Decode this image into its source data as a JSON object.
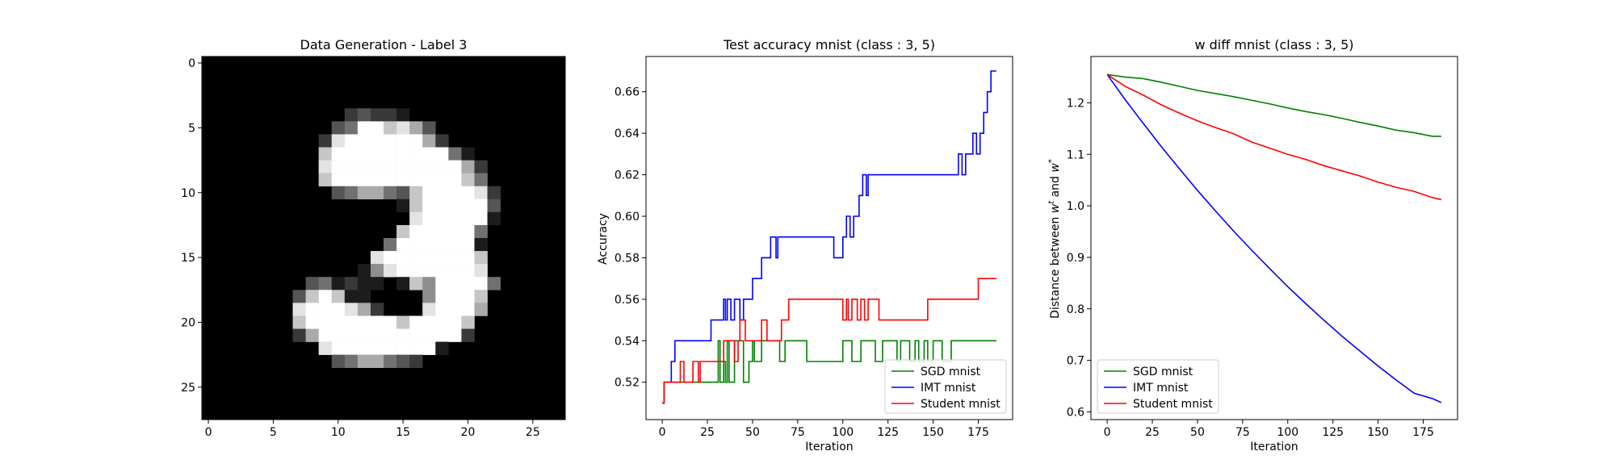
{
  "image_panel": {
    "title": "Data Generation - Label 3",
    "xticks": [
      "0",
      "5",
      "10",
      "15",
      "20",
      "25"
    ],
    "yticks": [
      "0",
      "5",
      "10",
      "15",
      "20",
      "25"
    ],
    "grid_size": 28,
    "colormap": "gray",
    "pixels": [
      "0000000000000000000000000000",
      "0000000000000000000000000000",
      "0000000000000000000000000000",
      "0000000000000000000000000000",
      "0000000000023221000000000000",
      "0000000000349978630000000000",
      "0000000002899999962000000000",
      "0000000007999999999410000000",
      "0000000008999999999962000000",
      "0000000007999999999974000000",
      "0000000000346643799998200000",
      "0000000000000001799999300000",
      "0000000000000000899999100000",
      "0000000000000007999994000000",
      "0000000000000049999991000000",
      "0000000000000899999997000000",
      "0000000000001589999998000000",
      "0000000034121101759999400000",
      "0000000379711000059997000000",
      "0000000899986200089996000000",
      "0000000799999997999970000000",
      "0000000269999999999920000000",
      "0000000008999999991000000000",
      "0000000000346643200000000000",
      "0000000000000000000000000000",
      "0000000000000000000000000000",
      "0000000000000000000000000000",
      "0000000000000000000000000000"
    ]
  },
  "chart_data": [
    {
      "type": "line",
      "title": "Test accuracy mnist (class : 3, 5)",
      "xlabel": "Iteration",
      "ylabel": "Accuracy",
      "xlim": [
        -9,
        194
      ],
      "ylim": [
        0.502,
        0.677
      ],
      "xticks": [
        0,
        25,
        50,
        75,
        100,
        125,
        150,
        175
      ],
      "yticks": [
        0.52,
        0.54,
        0.56,
        0.58,
        0.6,
        0.62,
        0.64,
        0.66
      ],
      "ytick_labels": [
        "0.52",
        "0.54",
        "0.56",
        "0.58",
        "0.60",
        "0.62",
        "0.64",
        "0.66"
      ],
      "legend_position": "lower-right",
      "step": true,
      "series": [
        {
          "name": "SGD mnist",
          "color": "#008000",
          "points": [
            [
              0,
              0.51
            ],
            [
              1,
              0.52
            ],
            [
              30,
              0.52
            ],
            [
              31,
              0.54
            ],
            [
              32,
              0.52
            ],
            [
              34,
              0.53
            ],
            [
              35,
              0.52
            ],
            [
              36,
              0.54
            ],
            [
              37,
              0.52
            ],
            [
              40,
              0.54
            ],
            [
              45,
              0.52
            ],
            [
              48,
              0.53
            ],
            [
              50,
              0.54
            ],
            [
              51,
              0.53
            ],
            [
              55,
              0.54
            ],
            [
              65,
              0.53
            ],
            [
              68,
              0.54
            ],
            [
              80,
              0.53
            ],
            [
              100,
              0.54
            ],
            [
              105,
              0.53
            ],
            [
              110,
              0.54
            ],
            [
              118,
              0.53
            ],
            [
              122,
              0.54
            ],
            [
              130,
              0.53
            ],
            [
              132,
              0.54
            ],
            [
              137,
              0.53
            ],
            [
              140,
              0.54
            ],
            [
              142,
              0.53
            ],
            [
              145,
              0.54
            ],
            [
              147,
              0.53
            ],
            [
              150,
              0.54
            ],
            [
              155,
              0.53
            ],
            [
              160,
              0.54
            ],
            [
              185,
              0.54
            ]
          ]
        },
        {
          "name": "IMT mnist",
          "color": "#0000ff",
          "points": [
            [
              0,
              0.51
            ],
            [
              1,
              0.52
            ],
            [
              5,
              0.53
            ],
            [
              7,
              0.54
            ],
            [
              27,
              0.55
            ],
            [
              34,
              0.56
            ],
            [
              35,
              0.55
            ],
            [
              36,
              0.56
            ],
            [
              38,
              0.55
            ],
            [
              40,
              0.56
            ],
            [
              43,
              0.55
            ],
            [
              45,
              0.56
            ],
            [
              50,
              0.57
            ],
            [
              55,
              0.58
            ],
            [
              60,
              0.59
            ],
            [
              63,
              0.58
            ],
            [
              64,
              0.59
            ],
            [
              95,
              0.58
            ],
            [
              100,
              0.59
            ],
            [
              102,
              0.6
            ],
            [
              104,
              0.59
            ],
            [
              106,
              0.6
            ],
            [
              109,
              0.61
            ],
            [
              111,
              0.62
            ],
            [
              113,
              0.61
            ],
            [
              114,
              0.62
            ],
            [
              164,
              0.63
            ],
            [
              166,
              0.62
            ],
            [
              168,
              0.63
            ],
            [
              172,
              0.64
            ],
            [
              174,
              0.63
            ],
            [
              176,
              0.64
            ],
            [
              178,
              0.65
            ],
            [
              180,
              0.66
            ],
            [
              182,
              0.67
            ],
            [
              185,
              0.67
            ]
          ]
        },
        {
          "name": "Student mnist",
          "color": "#ff0000",
          "points": [
            [
              0,
              0.51
            ],
            [
              1,
              0.52
            ],
            [
              10,
              0.53
            ],
            [
              12,
              0.52
            ],
            [
              17,
              0.53
            ],
            [
              20,
              0.52
            ],
            [
              21,
              0.53
            ],
            [
              34,
              0.54
            ],
            [
              40,
              0.53
            ],
            [
              42,
              0.54
            ],
            [
              43,
              0.55
            ],
            [
              46,
              0.54
            ],
            [
              55,
              0.55
            ],
            [
              58,
              0.54
            ],
            [
              66,
              0.55
            ],
            [
              70,
              0.56
            ],
            [
              100,
              0.55
            ],
            [
              102,
              0.56
            ],
            [
              103,
              0.55
            ],
            [
              105,
              0.56
            ],
            [
              108,
              0.55
            ],
            [
              110,
              0.56
            ],
            [
              112,
              0.55
            ],
            [
              114,
              0.56
            ],
            [
              120,
              0.55
            ],
            [
              147,
              0.56
            ],
            [
              175,
              0.57
            ],
            [
              185,
              0.57
            ]
          ]
        }
      ]
    },
    {
      "type": "line",
      "title": "w diff mnist (class : 3, 5)",
      "xlabel": "Iteration",
      "ylabel": "Distance between w^t and w^*",
      "xlim": [
        -9,
        194
      ],
      "ylim": [
        0.585,
        1.29
      ],
      "xticks": [
        0,
        25,
        50,
        75,
        100,
        125,
        150,
        175
      ],
      "yticks": [
        0.6,
        0.7,
        0.8,
        0.9,
        1.0,
        1.1,
        1.2
      ],
      "ytick_labels": [
        "0.6",
        "0.7",
        "0.8",
        "0.9",
        "1.0",
        "1.1",
        "1.2"
      ],
      "legend_position": "lower-left",
      "step": false,
      "series": [
        {
          "name": "SGD mnist",
          "color": "#008000",
          "points": [
            [
              0,
              1.255
            ],
            [
              10,
              1.25
            ],
            [
              20,
              1.247
            ],
            [
              30,
              1.24
            ],
            [
              40,
              1.232
            ],
            [
              50,
              1.224
            ],
            [
              60,
              1.218
            ],
            [
              70,
              1.212
            ],
            [
              80,
              1.205
            ],
            [
              90,
              1.198
            ],
            [
              100,
              1.19
            ],
            [
              110,
              1.183
            ],
            [
              120,
              1.177
            ],
            [
              130,
              1.17
            ],
            [
              140,
              1.162
            ],
            [
              150,
              1.155
            ],
            [
              160,
              1.147
            ],
            [
              170,
              1.142
            ],
            [
              180,
              1.135
            ],
            [
              185,
              1.135
            ]
          ]
        },
        {
          "name": "IMT mnist",
          "color": "#0000ff",
          "points": [
            [
              0,
              1.255
            ],
            [
              10,
              1.206
            ],
            [
              20,
              1.16
            ],
            [
              30,
              1.115
            ],
            [
              40,
              1.072
            ],
            [
              50,
              1.03
            ],
            [
              60,
              0.99
            ],
            [
              70,
              0.951
            ],
            [
              80,
              0.914
            ],
            [
              90,
              0.878
            ],
            [
              100,
              0.843
            ],
            [
              110,
              0.81
            ],
            [
              120,
              0.778
            ],
            [
              130,
              0.747
            ],
            [
              140,
              0.718
            ],
            [
              150,
              0.689
            ],
            [
              160,
              0.662
            ],
            [
              170,
              0.636
            ],
            [
              180,
              0.626
            ],
            [
              185,
              0.618
            ]
          ]
        },
        {
          "name": "Student mnist",
          "color": "#ff0000",
          "points": [
            [
              0,
              1.255
            ],
            [
              10,
              1.232
            ],
            [
              20,
              1.215
            ],
            [
              30,
              1.196
            ],
            [
              40,
              1.18
            ],
            [
              50,
              1.165
            ],
            [
              60,
              1.152
            ],
            [
              70,
              1.14
            ],
            [
              80,
              1.124
            ],
            [
              90,
              1.112
            ],
            [
              100,
              1.1
            ],
            [
              110,
              1.09
            ],
            [
              120,
              1.078
            ],
            [
              130,
              1.068
            ],
            [
              140,
              1.058
            ],
            [
              150,
              1.046
            ],
            [
              160,
              1.036
            ],
            [
              170,
              1.028
            ],
            [
              180,
              1.016
            ],
            [
              185,
              1.012
            ]
          ]
        }
      ]
    }
  ]
}
